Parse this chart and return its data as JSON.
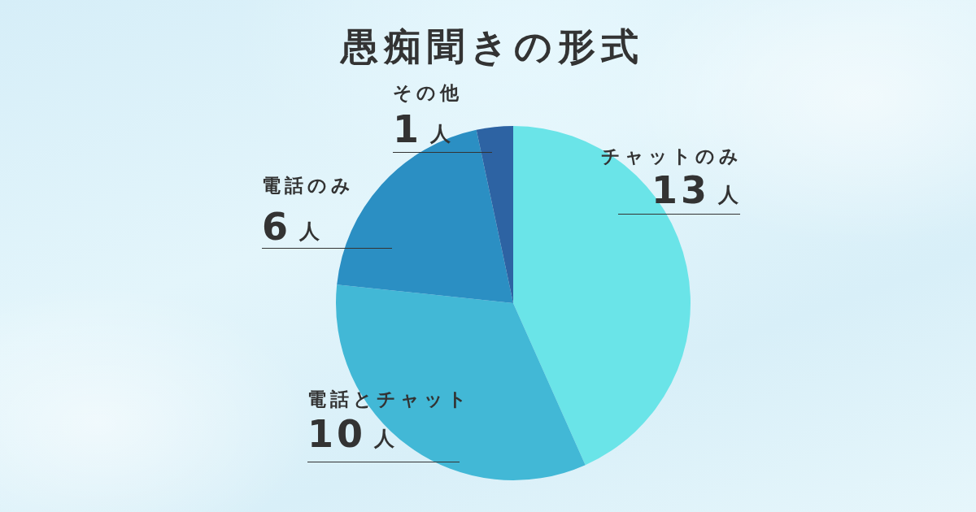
{
  "chart_data": {
    "type": "pie",
    "title": "愚痴聞きの形式",
    "categories": [
      "チャットのみ",
      "電話とチャット",
      "電話のみ",
      "その他"
    ],
    "values": [
      13,
      10,
      6,
      1
    ],
    "colors": [
      "#6ae4e8",
      "#42b8d6",
      "#2b8fc3",
      "#2d63a3"
    ],
    "value_labels": [
      "13人",
      "10人",
      "6人",
      "1人"
    ]
  }
}
